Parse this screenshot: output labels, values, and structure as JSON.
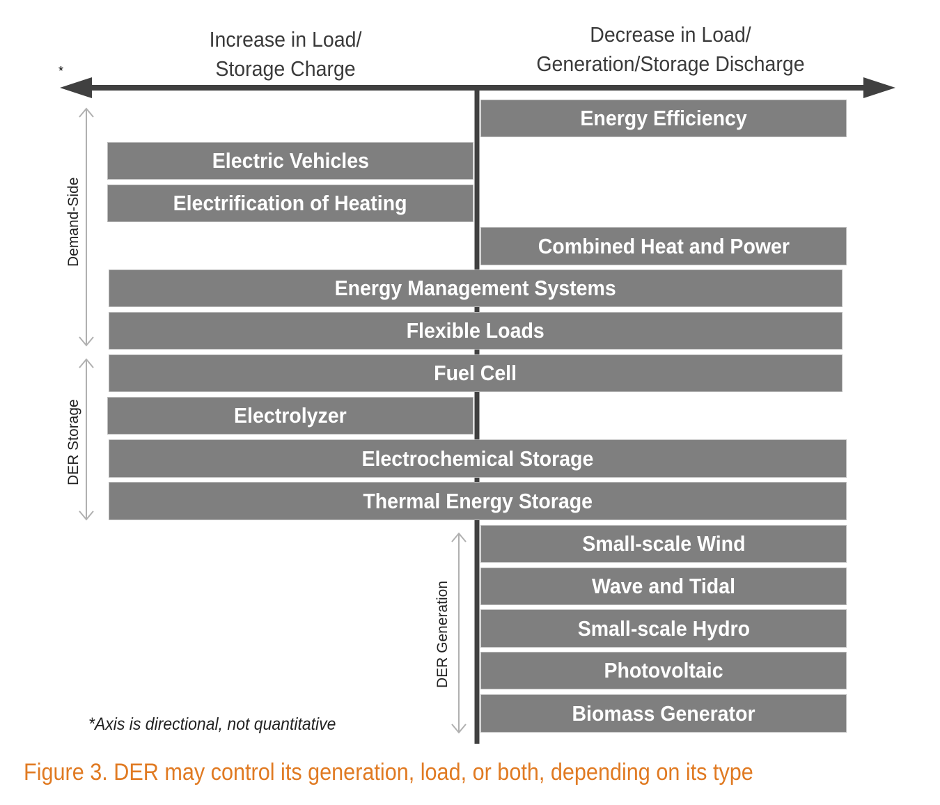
{
  "axis": {
    "left_label_line1": "Increase in Load/",
    "left_label_line2": "Storage Charge",
    "right_label_line1": "Decrease in Load/",
    "right_label_line2": "Generation/Storage Discharge",
    "asterisk": "*",
    "note": "*Axis is directional, not quantitative"
  },
  "groups": {
    "demand_side": "Demand-Side",
    "der_storage": "DER Storage",
    "der_generation": "DER Generation"
  },
  "bars": [
    {
      "label": "Energy Efficiency",
      "direction": "decrease"
    },
    {
      "label": "Electric Vehicles",
      "direction": "increase"
    },
    {
      "label": "Electrification of Heating",
      "direction": "increase"
    },
    {
      "label": "Combined Heat and Power",
      "direction": "decrease"
    },
    {
      "label": "Energy Management Systems",
      "direction": "both"
    },
    {
      "label": "Flexible Loads",
      "direction": "both"
    },
    {
      "label": "Fuel Cell",
      "direction": "both"
    },
    {
      "label": "Electrolyzer",
      "direction": "increase"
    },
    {
      "label": "Electrochemical Storage",
      "direction": "both"
    },
    {
      "label": "Thermal Energy Storage",
      "direction": "both"
    },
    {
      "label": "Small-scale Wind",
      "direction": "decrease"
    },
    {
      "label": "Wave and Tidal",
      "direction": "decrease"
    },
    {
      "label": "Small-scale Hydro",
      "direction": "decrease"
    },
    {
      "label": "Photovoltaic",
      "direction": "decrease"
    },
    {
      "label": "Biomass Generator",
      "direction": "decrease"
    }
  ],
  "caption": "Figure 3. DER may control its generation, load, or both, depending on its type",
  "colors": {
    "bar": "#7f7f7f",
    "axis": "#404040",
    "caption": "#e07a22",
    "group_arrow": "#b0b0b0"
  }
}
